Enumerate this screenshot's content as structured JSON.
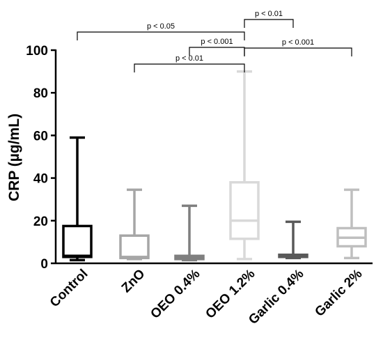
{
  "chart_data": {
    "type": "box",
    "ylabel": "CRP (µg/mL)",
    "ylim": [
      0,
      100
    ],
    "yticks": [
      "0",
      "20",
      "40",
      "60",
      "80",
      "100"
    ],
    "categories": [
      "Control",
      "ZnO",
      "OEO 0.4%",
      "OEO 1.2%",
      "Garlic 0.4%",
      "Garlic 2%"
    ],
    "boxes": [
      {
        "category": "Control",
        "min": 1.5,
        "q1": 3,
        "median": 3.5,
        "q3": 17.5,
        "max": 59,
        "color": "#000000"
      },
      {
        "category": "ZnO",
        "min": 2,
        "q1": 2.5,
        "median": 3,
        "q3": 13,
        "max": 34.5,
        "color": "#a6a6a6"
      },
      {
        "category": "OEO 0.4%",
        "min": 1.5,
        "q1": 2,
        "median": 2.5,
        "q3": 3.5,
        "max": 27,
        "color": "#7f7f7f"
      },
      {
        "category": "OEO 1.2%",
        "min": 2,
        "q1": 11.5,
        "median": 20,
        "q3": 38,
        "max": 90,
        "color": "#d9d9d9"
      },
      {
        "category": "Garlic 0.4%",
        "min": 2.5,
        "q1": 3,
        "median": 3.5,
        "q3": 4,
        "max": 19.5,
        "color": "#595959"
      },
      {
        "category": "Garlic 2%",
        "min": 2.5,
        "q1": 8,
        "median": 12,
        "q3": 16.5,
        "max": 34.5,
        "color": "#bfbfbf"
      }
    ],
    "significance": [
      {
        "from": "Control",
        "to": "OEO 1.2%",
        "label": "p < 0.05"
      },
      {
        "from": "OEO 1.2%",
        "to": "Garlic 2%",
        "label": "p < 0.001"
      },
      {
        "from": "ZnO",
        "to": "OEO 1.2%",
        "label": "p < 0.01"
      },
      {
        "from": "OEO 0.4%",
        "to": "OEO 1.2%",
        "label": "p < 0.001"
      },
      {
        "from": "OEO 1.2%",
        "to": "Garlic 0.4%",
        "label": "p < 0.01"
      }
    ]
  }
}
